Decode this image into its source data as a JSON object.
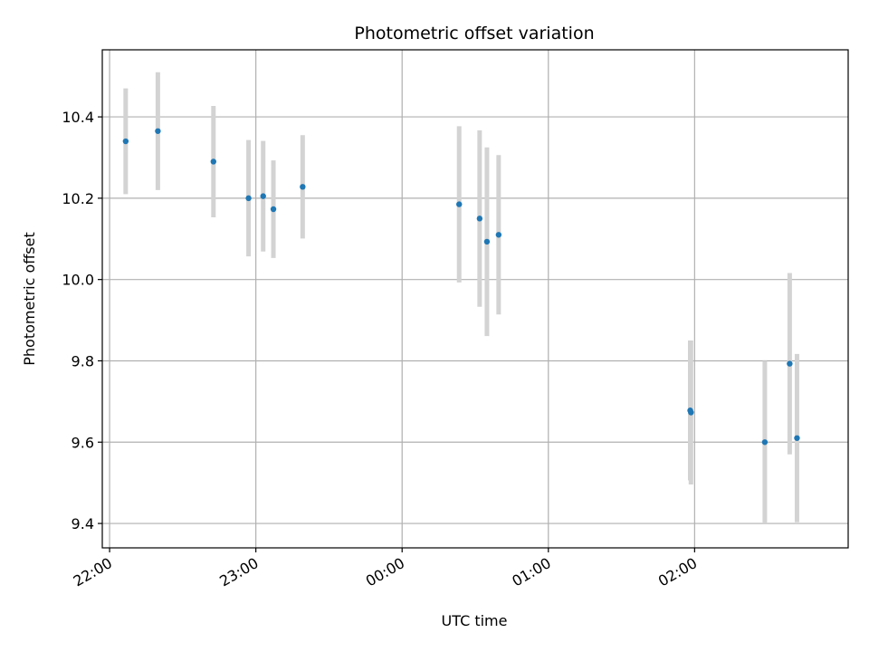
{
  "chart_data": {
    "type": "scatter",
    "title": "Photometric offset variation",
    "xlabel": "UTC time",
    "ylabel": "Photometric offset",
    "grid": true,
    "xlim_hours": [
      -2.05,
      3.05
    ],
    "ylim": [
      9.34,
      10.565
    ],
    "x_ticks": [
      {
        "h": -2,
        "label": "22:00"
      },
      {
        "h": -1,
        "label": "23:00"
      },
      {
        "h": 0,
        "label": "00:00"
      },
      {
        "h": 1,
        "label": "01:00"
      },
      {
        "h": 2,
        "label": "02:00"
      }
    ],
    "y_ticks": [
      {
        "v": 9.4,
        "label": "9.4"
      },
      {
        "v": 9.6,
        "label": "9.6"
      },
      {
        "v": 9.8,
        "label": "9.8"
      },
      {
        "v": 10.0,
        "label": "10.0"
      },
      {
        "v": 10.2,
        "label": "10.2"
      },
      {
        "v": 10.4,
        "label": "10.4"
      }
    ],
    "point_color": "#1f77b4",
    "errorbar_color": "#d3d3d3",
    "points": [
      {
        "time": "22:07",
        "h": -1.89,
        "y": 10.34,
        "err": 0.13
      },
      {
        "time": "22:20",
        "h": -1.67,
        "y": 10.365,
        "err": 0.145
      },
      {
        "time": "22:43",
        "h": -1.29,
        "y": 10.29,
        "err": 0.137
      },
      {
        "time": "22:58",
        "h": -1.05,
        "y": 10.2,
        "err": 0.143
      },
      {
        "time": "23:03",
        "h": -0.95,
        "y": 10.205,
        "err": 0.136
      },
      {
        "time": "23:07",
        "h": -0.88,
        "y": 10.173,
        "err": 0.12
      },
      {
        "time": "23:19",
        "h": -0.68,
        "y": 10.228,
        "err": 0.127
      },
      {
        "time": "00:23",
        "h": 0.39,
        "y": 10.185,
        "err": 0.192
      },
      {
        "time": "00:32",
        "h": 0.53,
        "y": 10.15,
        "err": 0.217
      },
      {
        "time": "00:35",
        "h": 0.58,
        "y": 10.093,
        "err": 0.232
      },
      {
        "time": "00:39",
        "h": 0.66,
        "y": 10.11,
        "err": 0.196
      },
      {
        "time": "01:58",
        "h": 1.97,
        "y": 9.678,
        "err": 0.172
      },
      {
        "time": "01:58",
        "h": 1.975,
        "y": 9.673,
        "err": 0.177
      },
      {
        "time": "02:29",
        "h": 2.48,
        "y": 9.6,
        "err": 0.2
      },
      {
        "time": "02:39",
        "h": 2.65,
        "y": 9.793,
        "err": 0.223
      },
      {
        "time": "02:42",
        "h": 2.7,
        "y": 9.61,
        "err": 0.207
      }
    ]
  }
}
